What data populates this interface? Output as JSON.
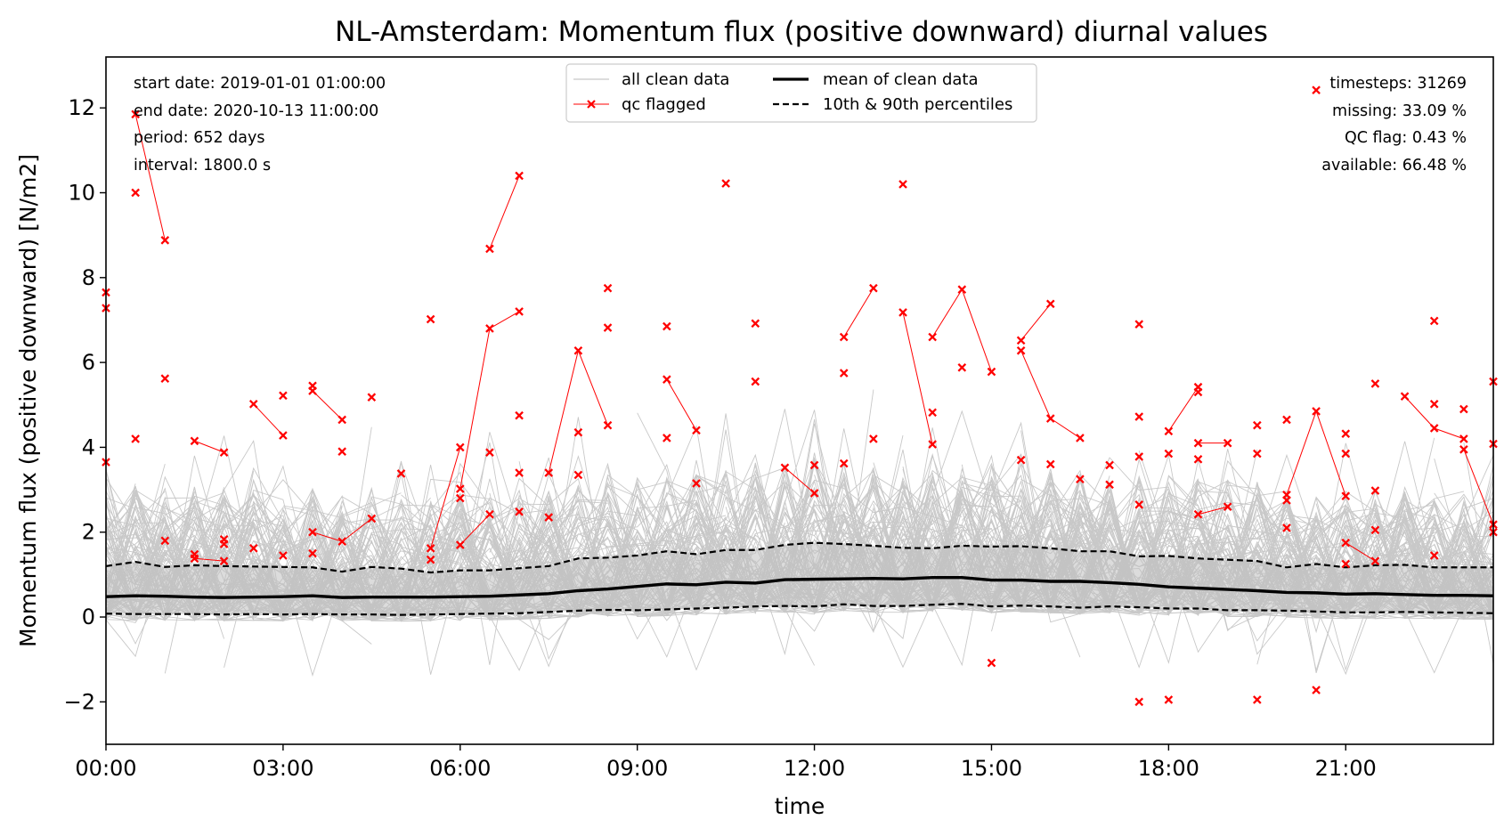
{
  "chart_data": {
    "type": "line",
    "title": "NL-Amsterdam: Momentum flux (positive downward) diurnal values",
    "xlabel": "time",
    "ylabel": "Momentum flux (positive downward) [N/m2]",
    "xlim": [
      0,
      23.5
    ],
    "ylim": [
      -3,
      13.2
    ],
    "x_ticks": [
      0,
      3,
      6,
      9,
      12,
      15,
      18,
      21
    ],
    "x_tick_labels": [
      "00:00",
      "03:00",
      "06:00",
      "09:00",
      "12:00",
      "15:00",
      "18:00",
      "21:00"
    ],
    "y_ticks": [
      -2,
      0,
      2,
      4,
      6,
      8,
      10,
      12
    ],
    "y_tick_labels": [
      "−2",
      "0",
      "2",
      "4",
      "6",
      "8",
      "10",
      "12"
    ],
    "legend": {
      "placement": "top-center",
      "entries": [
        "all clean data",
        "qc flagged",
        "mean of clean data",
        "10th & 90th percentiles"
      ]
    },
    "info_left": [
      "start date: 2019-01-01 01:00:00",
      "end date: 2020-10-13 11:00:00",
      "period: 652 days",
      "interval: 1800.0 s"
    ],
    "info_right": [
      "timesteps: 31269",
      "missing: 33.09 %",
      "QC flag: 0.43 %",
      "available: 66.48 %"
    ],
    "colors": {
      "clean": "#c8c8c8",
      "band": "#bfbfbf",
      "flag": "#ff0000",
      "mean": "#000000"
    },
    "x": [
      0,
      0.5,
      1,
      1.5,
      2,
      2.5,
      3,
      3.5,
      4,
      4.5,
      5,
      5.5,
      6,
      6.5,
      7,
      7.5,
      8,
      8.5,
      9,
      9.5,
      10,
      10.5,
      11,
      11.5,
      12,
      12.5,
      13,
      13.5,
      14,
      14.5,
      15,
      15.5,
      16,
      16.5,
      17,
      17.5,
      18,
      18.5,
      19,
      19.5,
      20,
      20.5,
      21,
      21.5,
      22,
      22.5,
      23,
      23.5
    ],
    "series": [
      {
        "name": "mean of clean data",
        "style": "solid",
        "values": [
          0.48,
          0.5,
          0.49,
          0.47,
          0.46,
          0.47,
          0.48,
          0.5,
          0.46,
          0.47,
          0.47,
          0.47,
          0.48,
          0.49,
          0.52,
          0.55,
          0.62,
          0.66,
          0.72,
          0.78,
          0.76,
          0.82,
          0.8,
          0.88,
          0.89,
          0.9,
          0.91,
          0.9,
          0.93,
          0.93,
          0.87,
          0.87,
          0.84,
          0.84,
          0.81,
          0.77,
          0.71,
          0.68,
          0.65,
          0.62,
          0.58,
          0.57,
          0.54,
          0.55,
          0.53,
          0.51,
          0.51,
          0.5
        ]
      },
      {
        "name": "10th & 90th percentiles",
        "style": "dashed",
        "values": [
          1.2,
          1.3,
          1.18,
          1.22,
          1.2,
          1.19,
          1.18,
          1.17,
          1.07,
          1.18,
          1.14,
          1.05,
          1.1,
          1.1,
          1.15,
          1.2,
          1.38,
          1.4,
          1.45,
          1.55,
          1.48,
          1.58,
          1.58,
          1.7,
          1.75,
          1.72,
          1.68,
          1.63,
          1.62,
          1.68,
          1.66,
          1.67,
          1.62,
          1.55,
          1.55,
          1.43,
          1.44,
          1.38,
          1.35,
          1.32,
          1.17,
          1.25,
          1.17,
          1.22,
          1.23,
          1.17,
          1.17,
          1.17
        ]
      },
      {
        "name": "10th & 90th percentiles",
        "style": "dashed",
        "values": [
          0.08,
          0.07,
          0.07,
          0.07,
          0.06,
          0.07,
          0.06,
          0.07,
          0.06,
          0.06,
          0.05,
          0.06,
          0.07,
          0.08,
          0.09,
          0.12,
          0.15,
          0.17,
          0.16,
          0.18,
          0.2,
          0.22,
          0.25,
          0.26,
          0.25,
          0.3,
          0.26,
          0.26,
          0.29,
          0.31,
          0.25,
          0.27,
          0.25,
          0.22,
          0.25,
          0.23,
          0.2,
          0.2,
          0.16,
          0.16,
          0.15,
          0.13,
          0.11,
          0.11,
          0.12,
          0.11,
          0.1,
          0.09
        ]
      }
    ],
    "qc_flagged_points": [
      [
        0,
        7.65
      ],
      [
        0,
        7.28
      ],
      [
        0,
        3.65
      ],
      [
        0.5,
        11.85
      ],
      [
        0.5,
        10.0
      ],
      [
        0.5,
        4.2
      ],
      [
        1,
        8.88
      ],
      [
        1,
        5.62
      ],
      [
        1,
        1.8
      ],
      [
        1.5,
        4.15
      ],
      [
        1.5,
        1.48
      ],
      [
        1.5,
        1.38
      ],
      [
        2,
        3.88
      ],
      [
        2,
        1.83
      ],
      [
        2,
        1.72
      ],
      [
        2,
        1.32
      ],
      [
        2.5,
        5.02
      ],
      [
        2.5,
        1.62
      ],
      [
        3,
        5.22
      ],
      [
        3,
        4.28
      ],
      [
        3,
        1.45
      ],
      [
        3.5,
        5.45
      ],
      [
        3.5,
        5.33
      ],
      [
        3.5,
        2.0
      ],
      [
        3.5,
        1.5
      ],
      [
        4,
        4.65
      ],
      [
        4,
        3.9
      ],
      [
        4,
        1.78
      ],
      [
        4.5,
        5.18
      ],
      [
        4.5,
        2.32
      ],
      [
        5,
        3.38
      ],
      [
        5.5,
        7.02
      ],
      [
        5.5,
        1.62
      ],
      [
        5.5,
        1.35
      ],
      [
        6,
        4.0
      ],
      [
        6,
        3.02
      ],
      [
        6,
        2.8
      ],
      [
        6,
        1.7
      ],
      [
        6.5,
        8.68
      ],
      [
        6.5,
        6.8
      ],
      [
        6.5,
        3.88
      ],
      [
        6.5,
        2.42
      ],
      [
        7,
        10.4
      ],
      [
        7,
        7.2
      ],
      [
        7,
        4.75
      ],
      [
        7,
        3.4
      ],
      [
        7,
        2.48
      ],
      [
        7.5,
        3.4
      ],
      [
        7.5,
        2.35
      ],
      [
        8,
        6.28
      ],
      [
        8,
        4.35
      ],
      [
        8,
        3.35
      ],
      [
        8.5,
        7.75
      ],
      [
        8.5,
        6.82
      ],
      [
        8.5,
        4.52
      ],
      [
        9.5,
        6.85
      ],
      [
        9.5,
        5.6
      ],
      [
        9.5,
        4.22
      ],
      [
        10,
        4.4
      ],
      [
        10,
        3.15
      ],
      [
        10.5,
        10.22
      ],
      [
        11,
        6.92
      ],
      [
        11,
        5.55
      ],
      [
        11.5,
        3.52
      ],
      [
        12,
        3.58
      ],
      [
        12,
        2.92
      ],
      [
        12.5,
        6.6
      ],
      [
        12.5,
        5.75
      ],
      [
        12.5,
        3.62
      ],
      [
        13,
        7.75
      ],
      [
        13,
        4.2
      ],
      [
        13.5,
        10.2
      ],
      [
        13.5,
        7.18
      ],
      [
        14,
        6.6
      ],
      [
        14,
        4.82
      ],
      [
        14,
        4.07
      ],
      [
        14.5,
        7.72
      ],
      [
        14.5,
        5.88
      ],
      [
        15,
        5.78
      ],
      [
        15,
        -1.08
      ],
      [
        15.5,
        6.52
      ],
      [
        15.5,
        6.28
      ],
      [
        15.5,
        3.7
      ],
      [
        16,
        7.38
      ],
      [
        16,
        4.68
      ],
      [
        16,
        3.6
      ],
      [
        16.5,
        4.22
      ],
      [
        16.5,
        3.25
      ],
      [
        17,
        3.58
      ],
      [
        17,
        3.12
      ],
      [
        17.5,
        6.9
      ],
      [
        17.5,
        4.72
      ],
      [
        17.5,
        3.78
      ],
      [
        17.5,
        2.65
      ],
      [
        17.5,
        -2.0
      ],
      [
        18,
        4.38
      ],
      [
        18,
        3.85
      ],
      [
        18,
        -1.95
      ],
      [
        18.5,
        5.42
      ],
      [
        18.5,
        5.3
      ],
      [
        18.5,
        4.1
      ],
      [
        18.5,
        3.72
      ],
      [
        18.5,
        2.42
      ],
      [
        19,
        4.1
      ],
      [
        19,
        2.6
      ],
      [
        19.5,
        4.52
      ],
      [
        19.5,
        3.85
      ],
      [
        19.5,
        -1.95
      ],
      [
        20,
        4.65
      ],
      [
        20,
        2.88
      ],
      [
        20,
        2.75
      ],
      [
        20,
        2.1
      ],
      [
        20.5,
        12.42
      ],
      [
        20.5,
        4.85
      ],
      [
        20.5,
        -1.72
      ],
      [
        21,
        4.32
      ],
      [
        21,
        3.85
      ],
      [
        21,
        2.85
      ],
      [
        21,
        1.75
      ],
      [
        21,
        1.25
      ],
      [
        21.5,
        5.5
      ],
      [
        21.5,
        2.98
      ],
      [
        21.5,
        2.05
      ],
      [
        21.5,
        1.32
      ],
      [
        22,
        5.2
      ],
      [
        22.5,
        6.98
      ],
      [
        22.5,
        5.02
      ],
      [
        22.5,
        4.45
      ],
      [
        22.5,
        1.45
      ],
      [
        23,
        4.9
      ],
      [
        23,
        4.2
      ],
      [
        23,
        3.95
      ],
      [
        23.5,
        5.55
      ],
      [
        23.5,
        4.08
      ],
      [
        23.5,
        2.18
      ],
      [
        23.5,
        2.0
      ]
    ],
    "qc_flagged_segments": [
      [
        [
          0.5,
          11.85
        ],
        [
          1,
          8.88
        ]
      ],
      [
        [
          1.5,
          4.15
        ],
        [
          2,
          3.88
        ]
      ],
      [
        [
          1.5,
          1.38
        ],
        [
          2,
          1.32
        ]
      ],
      [
        [
          3,
          4.28
        ],
        [
          2.5,
          5.02
        ]
      ],
      [
        [
          3.5,
          5.33
        ],
        [
          4,
          4.65
        ]
      ],
      [
        [
          3.5,
          2.0
        ],
        [
          4,
          1.78
        ]
      ],
      [
        [
          4,
          1.78
        ],
        [
          4.5,
          2.32
        ]
      ],
      [
        [
          5.5,
          1.62
        ],
        [
          6,
          4.0
        ]
      ],
      [
        [
          6,
          3.02
        ],
        [
          6.5,
          6.8
        ]
      ],
      [
        [
          6,
          1.7
        ],
        [
          6.5,
          2.42
        ]
      ],
      [
        [
          6.5,
          6.8
        ],
        [
          7,
          7.2
        ]
      ],
      [
        [
          6.5,
          8.68
        ],
        [
          7,
          10.4
        ]
      ],
      [
        [
          7.5,
          3.4
        ],
        [
          8,
          6.28
        ]
      ],
      [
        [
          8,
          6.28
        ],
        [
          8.5,
          4.52
        ]
      ],
      [
        [
          9.5,
          5.6
        ],
        [
          10,
          4.4
        ]
      ],
      [
        [
          11.5,
          3.52
        ],
        [
          12,
          2.92
        ]
      ],
      [
        [
          12.5,
          6.6
        ],
        [
          13,
          7.75
        ]
      ],
      [
        [
          13.5,
          7.18
        ],
        [
          14,
          4.07
        ]
      ],
      [
        [
          14,
          6.6
        ],
        [
          14.5,
          7.72
        ]
      ],
      [
        [
          14.5,
          7.72
        ],
        [
          15,
          5.78
        ]
      ],
      [
        [
          15.5,
          6.52
        ],
        [
          16,
          7.38
        ]
      ],
      [
        [
          15.5,
          6.28
        ],
        [
          16,
          4.68
        ]
      ],
      [
        [
          16,
          4.68
        ],
        [
          16.5,
          4.22
        ]
      ],
      [
        [
          18,
          4.38
        ],
        [
          18.5,
          5.42
        ]
      ],
      [
        [
          18.5,
          4.1
        ],
        [
          19,
          4.1
        ]
      ],
      [
        [
          18.5,
          2.42
        ],
        [
          19,
          2.6
        ]
      ],
      [
        [
          20,
          2.88
        ],
        [
          20.5,
          4.85
        ]
      ],
      [
        [
          20.5,
          4.85
        ],
        [
          21,
          2.85
        ]
      ],
      [
        [
          21,
          1.75
        ],
        [
          21.5,
          1.32
        ]
      ],
      [
        [
          22,
          5.2
        ],
        [
          22.5,
          4.45
        ]
      ],
      [
        [
          22.5,
          4.45
        ],
        [
          23,
          4.2
        ]
      ],
      [
        [
          23,
          3.95
        ],
        [
          23.5,
          2.18
        ]
      ]
    ]
  }
}
